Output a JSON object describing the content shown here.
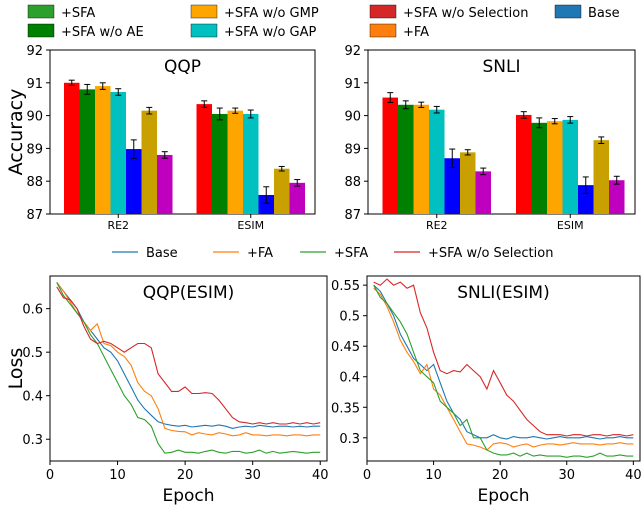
{
  "chart_data": [
    {
      "type": "bar",
      "title": "QQP",
      "ylabel": "Accuracy",
      "categories": [
        "RE2",
        "ESIM"
      ],
      "ylim": [
        87,
        92
      ],
      "yticks": [
        87,
        88,
        89,
        90,
        91,
        92
      ],
      "series": [
        {
          "name": "+SFA",
          "color": "#ff0000",
          "values": [
            91.0,
            90.35
          ],
          "errors": [
            0.08,
            0.1
          ]
        },
        {
          "name": "+SFA w/o AE",
          "color": "#008000",
          "values": [
            90.8,
            90.05
          ],
          "errors": [
            0.15,
            0.18
          ]
        },
        {
          "name": "+SFA w/o GMP",
          "color": "#ffa500",
          "values": [
            90.9,
            90.15
          ],
          "errors": [
            0.1,
            0.08
          ]
        },
        {
          "name": "+SFA w/o GAP",
          "color": "#00c0c0",
          "values": [
            90.72,
            90.05
          ],
          "errors": [
            0.1,
            0.12
          ]
        },
        {
          "name": "+SFA w/o Selection",
          "color": "#0000ff",
          "values": [
            88.98,
            87.58
          ],
          "errors": [
            0.28,
            0.25
          ]
        },
        {
          "name": "+FA",
          "color": "#c8a000",
          "values": [
            90.15,
            88.38
          ],
          "errors": [
            0.1,
            0.07
          ]
        },
        {
          "name": "Base",
          "color": "#bf00bf",
          "values": [
            88.8,
            87.95
          ],
          "errors": [
            0.1,
            0.1
          ]
        }
      ]
    },
    {
      "type": "bar",
      "title": "SNLI",
      "ylabel": "",
      "categories": [
        "RE2",
        "ESIM"
      ],
      "ylim": [
        87,
        92
      ],
      "yticks": [
        87,
        88,
        89,
        90,
        91,
        92
      ],
      "series": [
        {
          "name": "+SFA",
          "color": "#ff0000",
          "values": [
            90.55,
            90.02
          ],
          "errors": [
            0.15,
            0.1
          ]
        },
        {
          "name": "+SFA w/o AE",
          "color": "#008000",
          "values": [
            90.33,
            89.78
          ],
          "errors": [
            0.12,
            0.15
          ]
        },
        {
          "name": "+SFA w/o GMP",
          "color": "#ffa500",
          "values": [
            90.33,
            89.83
          ],
          "errors": [
            0.08,
            0.08
          ]
        },
        {
          "name": "+SFA w/o GAP",
          "color": "#00c0c0",
          "values": [
            90.18,
            89.87
          ],
          "errors": [
            0.1,
            0.1
          ]
        },
        {
          "name": "+SFA w/o Selection",
          "color": "#0000ff",
          "values": [
            88.7,
            87.88
          ],
          "errors": [
            0.28,
            0.25
          ]
        },
        {
          "name": "+FA",
          "color": "#c8a000",
          "values": [
            88.88,
            89.25
          ],
          "errors": [
            0.08,
            0.1
          ]
        },
        {
          "name": "Base",
          "color": "#bf00bf",
          "values": [
            88.3,
            88.03
          ],
          "errors": [
            0.1,
            0.12
          ]
        }
      ]
    },
    {
      "type": "line",
      "title": "QQP(ESIM)",
      "xlabel": "Epoch",
      "ylabel": "Loss",
      "xlim": [
        0,
        41
      ],
      "ylim": [
        0.25,
        0.675
      ],
      "xticks": [
        0,
        10,
        20,
        30,
        40
      ],
      "yticks": [
        0.3,
        0.4,
        0.5,
        0.6
      ],
      "x": [
        1,
        2,
        3,
        4,
        5,
        6,
        7,
        8,
        9,
        10,
        11,
        12,
        13,
        14,
        15,
        16,
        17,
        18,
        19,
        20,
        21,
        22,
        23,
        24,
        25,
        26,
        27,
        28,
        29,
        30,
        31,
        32,
        33,
        34,
        35,
        36,
        37,
        38,
        39,
        40
      ],
      "series": [
        {
          "name": "Base",
          "color": "#1f77b4",
          "values": [
            0.66,
            0.64,
            0.62,
            0.6,
            0.57,
            0.55,
            0.53,
            0.51,
            0.5,
            0.48,
            0.45,
            0.42,
            0.39,
            0.37,
            0.355,
            0.34,
            0.335,
            0.332,
            0.33,
            0.332,
            0.328,
            0.33,
            0.332,
            0.33,
            0.333,
            0.33,
            0.325,
            0.328,
            0.33,
            0.328,
            0.332,
            0.33,
            0.328,
            0.33,
            0.33,
            0.328,
            0.33,
            0.328,
            0.33,
            0.33
          ]
        },
        {
          "name": "+FA",
          "color": "#ff7f0e",
          "values": [
            0.66,
            0.64,
            0.615,
            0.59,
            0.57,
            0.55,
            0.565,
            0.52,
            0.515,
            0.5,
            0.49,
            0.47,
            0.43,
            0.41,
            0.4,
            0.37,
            0.325,
            0.32,
            0.318,
            0.317,
            0.31,
            0.315,
            0.312,
            0.31,
            0.315,
            0.312,
            0.308,
            0.31,
            0.315,
            0.31,
            0.31,
            0.308,
            0.31,
            0.31,
            0.308,
            0.31,
            0.31,
            0.308,
            0.31,
            0.31
          ]
        },
        {
          "name": "+SFA",
          "color": "#2ca02c",
          "values": [
            0.66,
            0.63,
            0.61,
            0.59,
            0.57,
            0.54,
            0.52,
            0.49,
            0.46,
            0.43,
            0.4,
            0.38,
            0.35,
            0.345,
            0.33,
            0.29,
            0.268,
            0.27,
            0.275,
            0.27,
            0.27,
            0.268,
            0.272,
            0.275,
            0.27,
            0.268,
            0.272,
            0.272,
            0.268,
            0.27,
            0.275,
            0.268,
            0.272,
            0.268,
            0.27,
            0.272,
            0.27,
            0.268,
            0.27,
            0.27
          ]
        },
        {
          "name": "+SFA w/o Selection",
          "color": "#d62728",
          "values": [
            0.65,
            0.625,
            0.62,
            0.6,
            0.56,
            0.53,
            0.52,
            0.525,
            0.52,
            0.51,
            0.5,
            0.51,
            0.52,
            0.52,
            0.51,
            0.45,
            0.43,
            0.41,
            0.41,
            0.42,
            0.405,
            0.405,
            0.407,
            0.405,
            0.39,
            0.37,
            0.35,
            0.34,
            0.338,
            0.335,
            0.338,
            0.335,
            0.338,
            0.335,
            0.335,
            0.338,
            0.335,
            0.338,
            0.335,
            0.338
          ]
        }
      ]
    },
    {
      "type": "line",
      "title": "SNLI(ESIM)",
      "xlabel": "Epoch",
      "ylabel": "",
      "xlim": [
        0,
        41
      ],
      "ylim": [
        0.262,
        0.565
      ],
      "xticks": [
        0,
        10,
        20,
        30,
        40
      ],
      "yticks": [
        0.3,
        0.35,
        0.4,
        0.45,
        0.5,
        0.55
      ],
      "x": [
        1,
        2,
        3,
        4,
        5,
        6,
        7,
        8,
        9,
        10,
        11,
        12,
        13,
        14,
        15,
        16,
        17,
        18,
        19,
        20,
        21,
        22,
        23,
        24,
        25,
        26,
        27,
        28,
        29,
        30,
        31,
        32,
        33,
        34,
        35,
        36,
        37,
        38,
        39,
        40
      ],
      "series": [
        {
          "name": "Base",
          "color": "#1f77b4",
          "values": [
            0.55,
            0.54,
            0.52,
            0.5,
            0.47,
            0.45,
            0.43,
            0.42,
            0.41,
            0.42,
            0.39,
            0.36,
            0.34,
            0.33,
            0.31,
            0.305,
            0.3,
            0.3,
            0.305,
            0.3,
            0.298,
            0.302,
            0.3,
            0.3,
            0.302,
            0.3,
            0.298,
            0.3,
            0.302,
            0.3,
            0.3,
            0.3,
            0.302,
            0.3,
            0.298,
            0.3,
            0.3,
            0.302,
            0.3,
            0.3
          ]
        },
        {
          "name": "+FA",
          "color": "#ff7f0e",
          "values": [
            0.545,
            0.535,
            0.515,
            0.49,
            0.46,
            0.44,
            0.425,
            0.405,
            0.42,
            0.38,
            0.37,
            0.35,
            0.33,
            0.31,
            0.29,
            0.288,
            0.285,
            0.28,
            0.29,
            0.292,
            0.29,
            0.285,
            0.288,
            0.29,
            0.285,
            0.288,
            0.29,
            0.29,
            0.288,
            0.29,
            0.292,
            0.29,
            0.29,
            0.29,
            0.288,
            0.29,
            0.29,
            0.292,
            0.29,
            0.29
          ]
        },
        {
          "name": "+SFA",
          "color": "#2ca02c",
          "values": [
            0.55,
            0.53,
            0.52,
            0.505,
            0.49,
            0.47,
            0.44,
            0.41,
            0.4,
            0.39,
            0.36,
            0.35,
            0.34,
            0.32,
            0.33,
            0.3,
            0.3,
            0.28,
            0.275,
            0.272,
            0.272,
            0.275,
            0.27,
            0.275,
            0.27,
            0.272,
            0.27,
            0.27,
            0.27,
            0.268,
            0.27,
            0.27,
            0.268,
            0.27,
            0.275,
            0.27,
            0.27,
            0.272,
            0.27,
            0.27
          ]
        },
        {
          "name": "+SFA w/o Selection",
          "color": "#d62728",
          "values": [
            0.555,
            0.55,
            0.56,
            0.55,
            0.555,
            0.545,
            0.55,
            0.505,
            0.48,
            0.44,
            0.41,
            0.405,
            0.41,
            0.408,
            0.42,
            0.41,
            0.4,
            0.38,
            0.41,
            0.39,
            0.37,
            0.36,
            0.345,
            0.33,
            0.32,
            0.31,
            0.305,
            0.305,
            0.305,
            0.303,
            0.305,
            0.305,
            0.303,
            0.305,
            0.305,
            0.303,
            0.305,
            0.305,
            0.303,
            0.305
          ]
        }
      ]
    }
  ],
  "legends": {
    "bar": [
      "+SFA",
      "+SFA w/o AE",
      "+SFA w/o GMP",
      "+SFA w/o GAP",
      "+SFA w/o Selection",
      "+FA",
      "Base"
    ],
    "line": [
      "Base",
      "+FA",
      "+SFA",
      "+SFA w/o Selection"
    ]
  }
}
